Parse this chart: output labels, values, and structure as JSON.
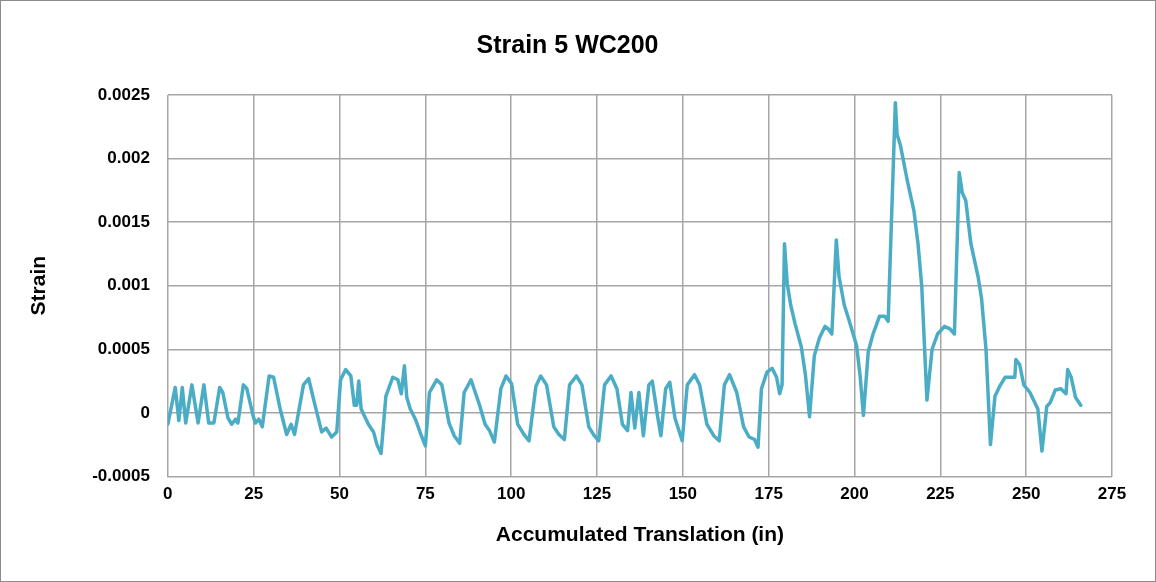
{
  "chart_data": {
    "type": "line",
    "title": "Strain 5 WC200",
    "xlabel": "Accumulated Translation (in)",
    "ylabel": "Strain",
    "xlim": [
      0,
      275
    ],
    "xticks": [
      0,
      25,
      50,
      75,
      100,
      125,
      150,
      175,
      200,
      225,
      250,
      275
    ],
    "ylim": [
      -0.0005,
      0.0025
    ],
    "yticks": [
      -0.0005,
      0,
      0.0005,
      0.001,
      0.0015,
      0.002,
      0.0025
    ],
    "grid": true,
    "legend": false,
    "marker": "none",
    "line_style": "solid",
    "series": [
      {
        "color": "#4bacc6",
        "x": [
          0,
          2.15,
          3.2,
          4.2,
          5.2,
          7,
          8.8,
          10.5,
          11.9,
          13.4,
          15.1,
          16,
          17.5,
          18.6,
          19.7,
          20.4,
          22,
          23,
          24.8,
          25.5,
          26.5,
          27.5,
          29.5,
          30.8,
          32.8,
          34.6,
          35.9,
          36.9,
          39.5,
          41,
          42.5,
          44.8,
          46.1,
          47.7,
          49.2,
          50.3,
          51.8,
          53.3,
          54.3,
          55,
          55.6,
          56.3,
          58.4,
          59.9,
          60.9,
          62.1,
          63.5,
          65.5,
          67,
          68,
          68.9,
          69.6,
          70.6,
          72.1,
          73.7,
          75,
          76.2,
          78.3,
          79.8,
          81.9,
          83.4,
          85,
          86.3,
          88.3,
          90.8,
          92.4,
          93.7,
          95.1,
          97,
          98.5,
          100.1,
          101.9,
          103.7,
          105.2,
          107.2,
          108.6,
          110.3,
          112.4,
          113.9,
          115.5,
          117,
          119,
          120.6,
          122.6,
          124.2,
          125.5,
          127.2,
          129.1,
          130.8,
          132.4,
          133.9,
          134.9,
          136,
          137.2,
          138.5,
          140.1,
          141.1,
          142.6,
          143.6,
          145,
          146.2,
          147.7,
          149.8,
          151.3,
          153.4,
          154.9,
          157,
          159,
          160.6,
          162.1,
          163.6,
          165.7,
          167.7,
          169.3,
          170.9,
          171.9,
          172.9,
          174.5,
          176,
          177.3,
          178.2,
          178.9,
          179.6,
          180.4,
          181.4,
          182.7,
          184.5,
          185.7,
          186.9,
          188.3,
          189.8,
          191.4,
          192.4,
          193.4,
          194.7,
          195.5,
          197,
          198.5,
          200.6,
          201.6,
          202.6,
          204,
          205.4,
          207.3,
          208.8,
          209.8,
          210.9,
          211.9,
          212.4,
          213.4,
          215.5,
          217.3,
          218.5,
          219.6,
          221.1,
          222.6,
          224.2,
          226.2,
          227.8,
          229.1,
          230.5,
          231.4,
          232.4,
          233.9,
          236,
          237,
          238.3,
          239.6,
          240.9,
          242.3,
          243.9,
          245.4,
          246.7,
          247,
          248.1,
          249.3,
          251.1,
          253.4,
          254.6,
          256,
          257,
          258.5,
          260.1,
          261.6,
          262.1,
          263.1,
          264.4,
          265.9
        ],
        "values": [
          -9e-05,
          0.0002,
          -6e-05,
          0.0002,
          -8e-05,
          0.00022,
          -8e-05,
          0.00022,
          -8e-05,
          -8e-05,
          0.0002,
          0.00016,
          -4e-05,
          -9e-05,
          -5e-05,
          -8e-05,
          0.00022,
          0.00019,
          -2e-05,
          -8e-05,
          -5e-05,
          -0.00011,
          0.00029,
          0.00028,
          2e-05,
          -0.00017,
          -9e-05,
          -0.00017,
          0.00022,
          0.00027,
          0.0001,
          -0.00015,
          -0.00012,
          -0.00019,
          -0.00015,
          0.00026,
          0.00034,
          0.00029,
          6e-05,
          6e-05,
          0.00025,
          3e-05,
          -9e-05,
          -0.00015,
          -0.00025,
          -0.00032,
          0.00013,
          0.00028,
          0.00026,
          0.00015,
          0.00037,
          0.00012,
          3e-05,
          -5e-05,
          -0.00017,
          -0.00026,
          0.00016,
          0.00026,
          0.00022,
          -8e-05,
          -0.00018,
          -0.00024,
          0.00016,
          0.00026,
          6e-05,
          -9e-05,
          -0.00014,
          -0.00023,
          0.00019,
          0.00029,
          0.00023,
          -9e-05,
          -0.00017,
          -0.00022,
          0.00021,
          0.00029,
          0.00022,
          -0.00011,
          -0.00017,
          -0.00021,
          0.00022,
          0.00029,
          0.00022,
          -0.00011,
          -0.00018,
          -0.00022,
          0.00022,
          0.00029,
          0.00019,
          -9e-05,
          -0.00014,
          0.00016,
          -0.00012,
          0.00016,
          -0.00018,
          0.00022,
          0.00025,
          -2e-05,
          -0.00018,
          0.00019,
          0.00024,
          -4e-05,
          -0.00022,
          0.00022,
          0.0003,
          0.00022,
          -9e-05,
          -0.00018,
          -0.00022,
          0.00022,
          0.0003,
          0.00016,
          -0.00011,
          -0.00019,
          -0.00021,
          -0.00027,
          0.00019,
          0.00032,
          0.00035,
          0.00028,
          0.00015,
          0.00022,
          0.00133,
          0.00102,
          0.00085,
          0.0007,
          0.00052,
          0.0003,
          -3e-05,
          0.00045,
          0.00059,
          0.00068,
          0.00066,
          0.00062,
          0.00136,
          0.00107,
          0.00085,
          0.00072,
          0.00053,
          0.0003,
          -2e-05,
          0.00048,
          0.00062,
          0.00076,
          0.00076,
          0.00072,
          0.00162,
          0.00244,
          0.00219,
          0.0021,
          0.00181,
          0.00159,
          0.00133,
          0.00099,
          0.0001,
          0.0005,
          0.00062,
          0.00068,
          0.00066,
          0.00062,
          0.00189,
          0.00173,
          0.00167,
          0.00133,
          0.00107,
          0.0009,
          0.0005,
          -0.00025,
          0.00013,
          0.00021,
          0.00028,
          0.00028,
          0.00028,
          0.00042,
          0.00038,
          0.00022,
          0.00016,
          3e-05,
          -0.0003,
          5e-05,
          8e-05,
          0.00018,
          0.00019,
          0.00015,
          0.00034,
          0.00028,
          0.00012,
          6e-05
        ]
      }
    ]
  }
}
